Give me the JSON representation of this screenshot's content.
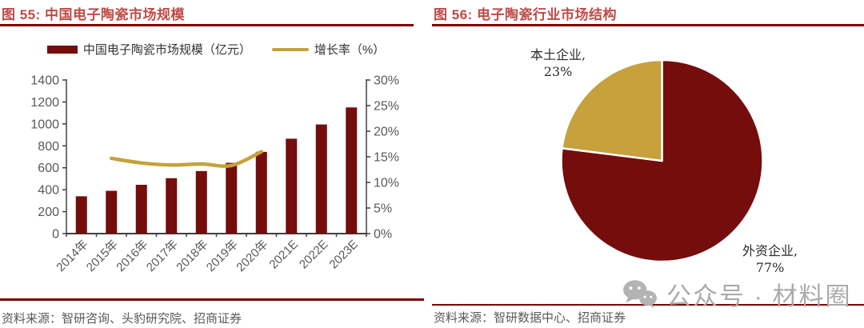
{
  "colors": {
    "maroon": "#750D0D",
    "gold": "#C6A13C",
    "title_red": "#BF4B47",
    "rule_red": "#7F0000",
    "axis_line": "#404040",
    "axis_text": "#595959",
    "watermark_gray": "#ABABAB"
  },
  "left_panel": {
    "title": "图 55: 中国电子陶瓷市场规模",
    "legend": {
      "bar_label": "中国电子陶瓷市场规模（亿元）",
      "line_label": "增长率（%）"
    },
    "source": "资料来源：智研咨询、头豹研究院、招商证券"
  },
  "right_panel": {
    "title": "图 56: 电子陶瓷行业市场结构",
    "source": "资料来源：智研数据中心、招商证券",
    "pie_labels": {
      "domestic_line1": "本土企业,",
      "domestic_line2": "23%",
      "foreign_line1": "外资企业,",
      "foreign_line2": "77%"
    }
  },
  "watermark": {
    "icon": "wechat-icon",
    "text": "公众号 · 材料圈"
  },
  "chart_data": [
    {
      "type": "bar",
      "title": "图 55: 中国电子陶瓷市场规模",
      "categories": [
        "2014年",
        "2015年",
        "2016年",
        "2017年",
        "2018年",
        "2019年",
        "2020年",
        "2021E",
        "2022E",
        "2023E"
      ],
      "series": [
        {
          "name": "中国电子陶瓷市场规模（亿元）",
          "type": "bar",
          "axis": "left",
          "color": "#750D0D",
          "values": [
            340,
            390,
            445,
            505,
            570,
            645,
            745,
            865,
            995,
            1150
          ]
        },
        {
          "name": "增长率（%）",
          "type": "line",
          "axis": "right",
          "color": "#C6A13C",
          "values": [
            null,
            14.7,
            13.8,
            13.4,
            13.6,
            13.3,
            16.0,
            null,
            null,
            null
          ]
        }
      ],
      "left_axis": {
        "min": 0,
        "max": 1400,
        "step": 200
      },
      "right_axis": {
        "min": 0,
        "max": 30,
        "step": 5,
        "suffix": "%"
      },
      "grid": false,
      "legend_position": "top"
    },
    {
      "type": "pie",
      "title": "图 56: 电子陶瓷行业市场结构",
      "slices": [
        {
          "label": "外资企业",
          "value": 77,
          "pct": "77%",
          "color": "#750D0D"
        },
        {
          "label": "本土企业",
          "value": 23,
          "pct": "23%",
          "color": "#C6A13C"
        }
      ],
      "start_angle": "top",
      "direction": "clockwise",
      "legend_position": "none"
    }
  ]
}
